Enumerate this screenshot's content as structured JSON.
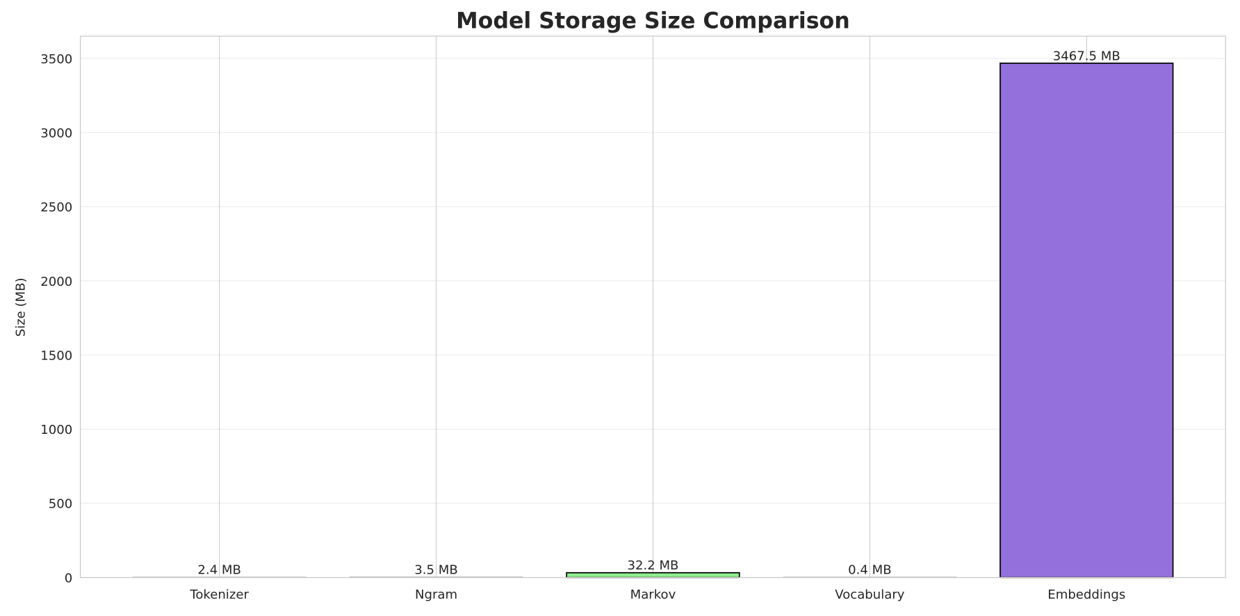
{
  "chart_data": {
    "type": "bar",
    "title": "Model Storage Size Comparison",
    "xlabel": "",
    "ylabel": "Size (MB)",
    "categories": [
      "Tokenizer",
      "Ngram",
      "Markov",
      "Vocabulary",
      "Embeddings"
    ],
    "values": [
      2.4,
      3.5,
      32.2,
      0.4,
      3467.5
    ],
    "data_labels": [
      "2.4 MB",
      "3.5 MB",
      "32.2 MB",
      "0.4 MB",
      "3467.5 MB"
    ],
    "colors": [
      "#4682b4",
      "#ff7f50",
      "#90ee90",
      "#ffd700",
      "#9370db"
    ],
    "edge_color": "#000000",
    "ylim": [
      0,
      3650
    ],
    "yticks": [
      0,
      500,
      1000,
      1500,
      2000,
      2500,
      3000,
      3500
    ],
    "grid": true,
    "legend": "none"
  }
}
